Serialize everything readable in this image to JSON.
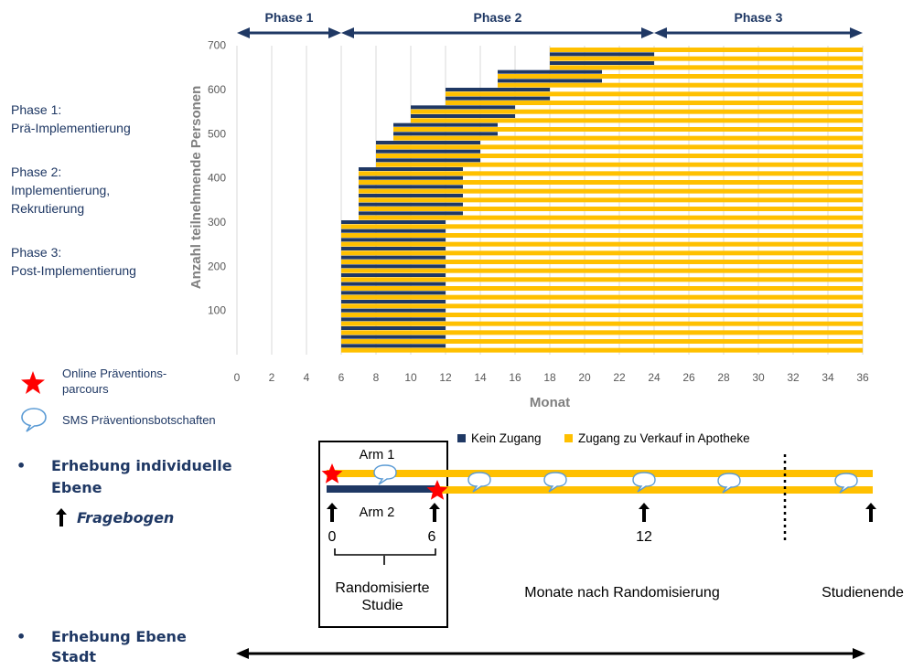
{
  "phase_descriptions": [
    {
      "title": "Phase 1:",
      "lines": [
        "Prä-Implementierung"
      ]
    },
    {
      "title": "Phase 2:",
      "lines": [
        "Implementierung,",
        "Rekrutierung"
      ]
    },
    {
      "title": "Phase 3:",
      "lines": [
        "Post-Implementierung"
      ]
    }
  ],
  "legend_symbols": {
    "star_label_1": "Online Präventions-",
    "star_label_2": "parcours",
    "sms_label": "SMS Präventionsbotschaften"
  },
  "bullets": {
    "individual_1": "Erhebung individuelle",
    "individual_2": "Ebene",
    "questionnaire": "Fragebogen",
    "city_1": "Erhebung Ebene",
    "city_2": "Stadt"
  },
  "colors": {
    "navy": "#1f3864",
    "gold": "#ffc000",
    "star": "#ff0000",
    "grid": "#d9d9d9"
  },
  "chart_data": {
    "type": "bar",
    "xlabel": "Monat",
    "ylabel": "Anzahl teilnehmende Personen",
    "xlim": [
      0,
      36
    ],
    "ylim": [
      0,
      720
    ],
    "x_ticks": [
      0,
      2,
      4,
      6,
      8,
      10,
      12,
      14,
      16,
      18,
      20,
      22,
      24,
      26,
      28,
      30,
      32,
      34,
      36
    ],
    "y_ticks": [
      100,
      200,
      300,
      400,
      500,
      600,
      700
    ],
    "grid": "vertical",
    "phases": [
      {
        "name": "Phase 1",
        "start": 0,
        "end": 6
      },
      {
        "name": "Phase 2",
        "start": 6,
        "end": 24
      },
      {
        "name": "Phase 3",
        "start": 24,
        "end": 36
      }
    ],
    "legend": [
      "Kein Zugang",
      "Zugang zu Verkauf in Apotheke"
    ],
    "series": [
      {
        "name": "Kein Zugang",
        "bars": [
          {
            "y": 20,
            "start": 6,
            "end": 12
          },
          {
            "y": 40,
            "start": 6,
            "end": 12
          },
          {
            "y": 60,
            "start": 6,
            "end": 12
          },
          {
            "y": 80,
            "start": 6,
            "end": 12
          },
          {
            "y": 100,
            "start": 6,
            "end": 12
          },
          {
            "y": 120,
            "start": 6,
            "end": 12
          },
          {
            "y": 140,
            "start": 6,
            "end": 12
          },
          {
            "y": 160,
            "start": 6,
            "end": 12
          },
          {
            "y": 180,
            "start": 6,
            "end": 12
          },
          {
            "y": 200,
            "start": 6,
            "end": 12
          },
          {
            "y": 220,
            "start": 6,
            "end": 12
          },
          {
            "y": 240,
            "start": 6,
            "end": 12
          },
          {
            "y": 260,
            "start": 6,
            "end": 12
          },
          {
            "y": 280,
            "start": 6,
            "end": 12
          },
          {
            "y": 300,
            "start": 6,
            "end": 12
          },
          {
            "y": 320,
            "start": 7,
            "end": 13
          },
          {
            "y": 340,
            "start": 7,
            "end": 13
          },
          {
            "y": 360,
            "start": 7,
            "end": 13
          },
          {
            "y": 380,
            "start": 7,
            "end": 13
          },
          {
            "y": 400,
            "start": 7,
            "end": 13
          },
          {
            "y": 420,
            "start": 7,
            "end": 13
          },
          {
            "y": 440,
            "start": 8,
            "end": 14
          },
          {
            "y": 460,
            "start": 8,
            "end": 14
          },
          {
            "y": 480,
            "start": 8,
            "end": 14
          },
          {
            "y": 500,
            "start": 9,
            "end": 15
          },
          {
            "y": 520,
            "start": 9,
            "end": 15
          },
          {
            "y": 540,
            "start": 10,
            "end": 16
          },
          {
            "y": 560,
            "start": 10,
            "end": 16
          },
          {
            "y": 580,
            "start": 12,
            "end": 18
          },
          {
            "y": 600,
            "start": 12,
            "end": 18
          },
          {
            "y": 620,
            "start": 15,
            "end": 21
          },
          {
            "y": 640,
            "start": 15,
            "end": 21
          },
          {
            "y": 660,
            "start": 18,
            "end": 24
          },
          {
            "y": 680,
            "start": 18,
            "end": 24
          }
        ]
      },
      {
        "name": "Zugang zu Verkauf in Apotheke",
        "bars": [
          {
            "y": 10,
            "start": 6,
            "end": 36
          },
          {
            "y": 30,
            "start": 6,
            "end": 36
          },
          {
            "y": 50,
            "start": 6,
            "end": 36
          },
          {
            "y": 70,
            "start": 6,
            "end": 36
          },
          {
            "y": 90,
            "start": 6,
            "end": 36
          },
          {
            "y": 110,
            "start": 6,
            "end": 36
          },
          {
            "y": 130,
            "start": 6,
            "end": 36
          },
          {
            "y": 150,
            "start": 6,
            "end": 36
          },
          {
            "y": 170,
            "start": 6,
            "end": 36
          },
          {
            "y": 190,
            "start": 6,
            "end": 36
          },
          {
            "y": 210,
            "start": 6,
            "end": 36
          },
          {
            "y": 230,
            "start": 6,
            "end": 36
          },
          {
            "y": 250,
            "start": 6,
            "end": 36
          },
          {
            "y": 270,
            "start": 6,
            "end": 36
          },
          {
            "y": 290,
            "start": 6,
            "end": 36
          },
          {
            "y": 310,
            "start": 7,
            "end": 36
          },
          {
            "y": 330,
            "start": 7,
            "end": 36
          },
          {
            "y": 350,
            "start": 7,
            "end": 36
          },
          {
            "y": 370,
            "start": 7,
            "end": 36
          },
          {
            "y": 390,
            "start": 7,
            "end": 36
          },
          {
            "y": 410,
            "start": 7,
            "end": 36
          },
          {
            "y": 430,
            "start": 8,
            "end": 36
          },
          {
            "y": 450,
            "start": 8,
            "end": 36
          },
          {
            "y": 470,
            "start": 8,
            "end": 36
          },
          {
            "y": 490,
            "start": 9,
            "end": 36
          },
          {
            "y": 510,
            "start": 9,
            "end": 36
          },
          {
            "y": 530,
            "start": 10,
            "end": 36
          },
          {
            "y": 550,
            "start": 10,
            "end": 36
          },
          {
            "y": 570,
            "start": 12,
            "end": 36
          },
          {
            "y": 590,
            "start": 12,
            "end": 36
          },
          {
            "y": 610,
            "start": 15,
            "end": 36
          },
          {
            "y": 630,
            "start": 15,
            "end": 36
          },
          {
            "y": 650,
            "start": 18,
            "end": 36
          },
          {
            "y": 670,
            "start": 18,
            "end": 36
          },
          {
            "y": 690,
            "start": 18,
            "end": 36
          }
        ]
      }
    ]
  },
  "timeline": {
    "arm1": "Arm 1",
    "arm2": "Arm 2",
    "tick_0": "0",
    "tick_6": "6",
    "tick_12": "12",
    "randomized_1": "Randomisierte",
    "randomized_2": "Studie",
    "months_label": "Monate nach Randomisierung",
    "end_label": "Studienende"
  }
}
